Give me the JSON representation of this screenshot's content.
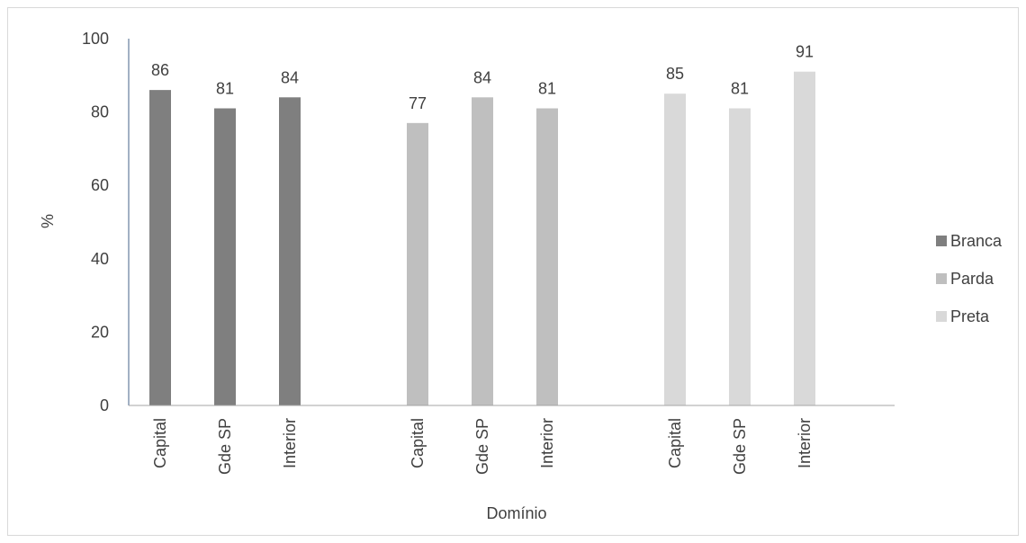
{
  "chart_data": {
    "type": "bar",
    "title": "",
    "xlabel": "Domínio",
    "ylabel": "%",
    "ylim": [
      0,
      100
    ],
    "yticks": [
      0,
      20,
      40,
      60,
      80,
      100
    ],
    "grid": false,
    "legend_placement": "right",
    "categories": [
      "Capital",
      "Gde SP",
      "Interior"
    ],
    "series": [
      {
        "name": "Branca",
        "color": "#7f7f7f",
        "values": [
          86,
          81,
          84
        ]
      },
      {
        "name": "Parda",
        "color": "#bfbfbf",
        "values": [
          77,
          84,
          81
        ]
      },
      {
        "name": "Preta",
        "color": "#d9d9d9",
        "values": [
          85,
          81,
          91
        ]
      }
    ]
  },
  "colors": {
    "axis": "#8497b0",
    "baseline": "#a6a6a6",
    "text": "#404040"
  }
}
